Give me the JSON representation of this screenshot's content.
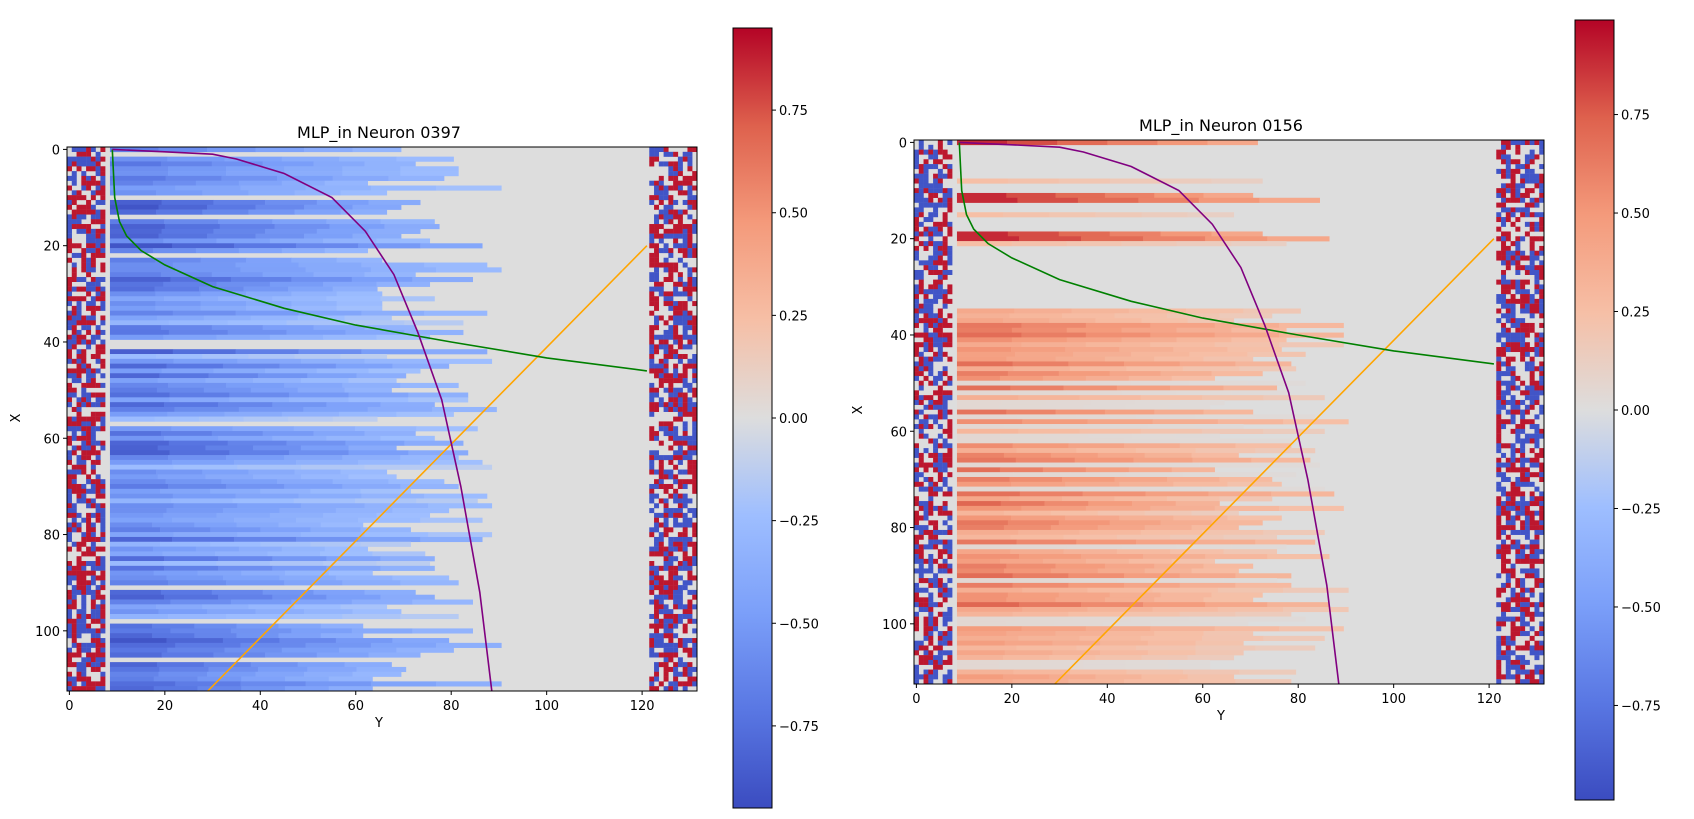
{
  "colors": {
    "neg": "#3b4cc0",
    "mid": "#dddddd",
    "pos": "#b40426",
    "orange_line": "#ffa500",
    "green_line": "#008000",
    "purple_line": "#800080"
  },
  "chart_data": [
    {
      "type": "heatmap",
      "title": "MLP_in Neuron 0397",
      "xlabel": "Y",
      "ylabel": "X",
      "xlim": [
        -0.5,
        131.5
      ],
      "ylim": [
        112.5,
        -0.5
      ],
      "xticks": [
        0,
        20,
        40,
        60,
        80,
        100,
        120
      ],
      "yticks": [
        0,
        20,
        40,
        60,
        80,
        100
      ],
      "sign": -1,
      "heatmap_description": "Negative activations (blue) fill columns 9–~90, strongest on the left and fading toward ~90; columns 0–8 and 121–131 hold a sparse red/blue border pattern; the rest is near 0 (grey).",
      "lines": [
        {
          "name": "orange",
          "color": "#ffa500",
          "x": [
            29,
            121
          ],
          "y": [
            112.5,
            20
          ]
        },
        {
          "name": "green",
          "color": "#008000",
          "x": [
            9,
            9.5,
            10.5,
            12,
            15,
            20,
            30,
            45,
            60,
            80,
            100,
            121
          ],
          "y": [
            0,
            10,
            15,
            18,
            21,
            24,
            28.5,
            33,
            36.5,
            40,
            43.3,
            46
          ]
        },
        {
          "name": "purple",
          "color": "#800080",
          "x": [
            9,
            20,
            30,
            35,
            45,
            55,
            62,
            68,
            73,
            78,
            82,
            86,
            88.5
          ],
          "y": [
            0,
            0.5,
            1,
            2,
            5,
            10,
            17,
            26,
            38,
            52,
            70,
            92,
            112.5
          ]
        }
      ],
      "colorbar": {
        "min": -0.95,
        "max": 0.95,
        "ticks": [
          -0.75,
          -0.5,
          -0.25,
          0.0,
          0.25,
          0.5,
          0.75
        ],
        "tick_labels": [
          "−0.75",
          "−0.50",
          "−0.25",
          "0.00",
          "0.25",
          "0.50",
          "0.75"
        ]
      }
    },
    {
      "type": "heatmap",
      "title": "MLP_in Neuron 0156",
      "xlabel": "Y",
      "ylabel": "X",
      "xlim": [
        -0.5,
        131.5
      ],
      "ylim": [
        112.5,
        -0.5
      ],
      "xticks": [
        0,
        20,
        40,
        60,
        80,
        100,
        120
      ],
      "yticks": [
        0,
        20,
        40,
        60,
        80,
        100
      ],
      "sign": 1,
      "heatmap_description": "Positive activations (red) fill columns 9–~90 in rows mostly below 35, strongest on the left; columns 0–8 and 121–131 hold a sparse red/blue border pattern; the rest is near 0 (grey).",
      "lines": [
        {
          "name": "orange",
          "color": "#ffa500",
          "x": [
            29,
            121
          ],
          "y": [
            112.5,
            20
          ]
        },
        {
          "name": "green",
          "color": "#008000",
          "x": [
            9,
            9.5,
            10.5,
            12,
            15,
            20,
            30,
            45,
            60,
            80,
            100,
            121
          ],
          "y": [
            0,
            10,
            15,
            18,
            21,
            24,
            28.5,
            33,
            36.5,
            40,
            43.3,
            46
          ]
        },
        {
          "name": "purple",
          "color": "#800080",
          "x": [
            9,
            20,
            30,
            35,
            45,
            55,
            62,
            68,
            73,
            78,
            82,
            86,
            88.5
          ],
          "y": [
            0,
            0.5,
            1,
            2,
            5,
            10,
            17,
            26,
            38,
            52,
            70,
            92,
            112.5
          ]
        }
      ],
      "colorbar": {
        "min": -0.99,
        "max": 0.99,
        "ticks": [
          -0.75,
          -0.5,
          -0.25,
          0.0,
          0.25,
          0.5,
          0.75
        ],
        "tick_labels": [
          "−0.75",
          "−0.50",
          "−0.25",
          "0.00",
          "0.25",
          "0.50",
          "0.75"
        ]
      }
    }
  ]
}
